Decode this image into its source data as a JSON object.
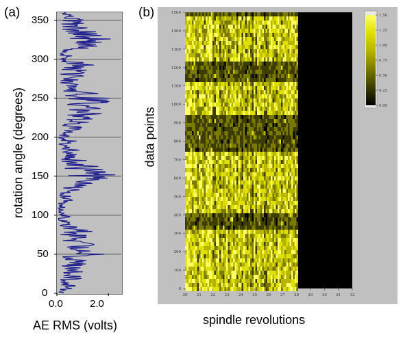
{
  "panel_a": {
    "label": "(a)"
  },
  "panel_b": {
    "label": "(b)"
  },
  "chart_data": [
    {
      "type": "line",
      "orientation": "horizontal-trace",
      "xlabel": "AE RMS (volts)",
      "ylabel": "rotation angle (degrees)",
      "xlim": [
        0,
        2.5
      ],
      "ylim": [
        0,
        360
      ],
      "xticks": [
        "0.0",
        "2.0"
      ],
      "yticks": [
        "0",
        "50",
        "100",
        "150",
        "200",
        "250",
        "300",
        "350"
      ],
      "grid": "horizontal",
      "background": "#c0c0c0",
      "series": [
        {
          "color": "#1f1f8f",
          "angle": [
            0,
            5,
            10,
            15,
            20,
            25,
            30,
            35,
            40,
            45,
            50,
            55,
            60,
            65,
            70,
            75,
            80,
            85,
            90,
            95,
            100,
            105,
            110,
            115,
            120,
            125,
            130,
            135,
            140,
            145,
            150,
            155,
            160,
            165,
            170,
            175,
            180,
            185,
            190,
            195,
            200,
            205,
            210,
            215,
            220,
            225,
            230,
            235,
            240,
            245,
            250,
            255,
            260,
            265,
            270,
            275,
            280,
            285,
            290,
            295,
            300,
            305,
            310,
            315,
            320,
            325,
            330,
            335,
            340,
            345,
            350,
            355,
            360
          ],
          "rms": [
            0.3,
            0.5,
            0.8,
            0.4,
            0.9,
            0.6,
            1.1,
            0.8,
            1.3,
            1.0,
            1.6,
            1.2,
            1.4,
            1.1,
            1.5,
            0.9,
            1.2,
            0.7,
            0.5,
            0.3,
            0.6,
            0.2,
            0.4,
            0.3,
            0.6,
            0.5,
            0.7,
            0.9,
            1.1,
            1.4,
            1.9,
            2.0,
            1.5,
            1.2,
            1.0,
            0.8,
            0.6,
            0.9,
            0.5,
            0.7,
            0.4,
            0.6,
            0.8,
            0.9,
            1.1,
            1.3,
            1.5,
            1.7,
            1.6,
            1.8,
            1.9,
            1.4,
            1.2,
            1.0,
            0.9,
            1.1,
            0.8,
            1.0,
            1.3,
            1.2,
            0.6,
            0.5,
            0.8,
            1.3,
            1.7,
            2.0,
            1.8,
            1.6,
            1.3,
            1.1,
            0.9,
            0.6,
            0.3
          ]
        }
      ]
    },
    {
      "type": "heatmap",
      "xlabel": "spindle revolutions",
      "ylabel": "data points",
      "ylim": [
        0,
        1500
      ],
      "yticks": [
        "0",
        "100",
        "200",
        "300",
        "400",
        "500",
        "600",
        "700",
        "800",
        "900",
        "1000",
        "1100",
        "1200",
        "1300",
        "1400",
        "1500"
      ],
      "xticks": [
        "20",
        "21",
        "22",
        "23",
        "24",
        "25",
        "26",
        "27",
        "28",
        "29",
        "30",
        "31",
        "32"
      ],
      "data_end_revolution": 28,
      "colormap": [
        "#000000",
        "#3d3d00",
        "#7a7a00",
        "#b5b500",
        "#e0e000",
        "#ffff66"
      ],
      "colorbar": {
        "ticks": [
          "0.00",
          "0.25",
          "0.50",
          "0.75",
          "1.00",
          "1.25",
          "1.50"
        ]
      },
      "bright_bands": [
        [
          0,
          330
        ],
        [
          420,
          760
        ],
        [
          960,
          1140
        ],
        [
          1250,
          1480
        ]
      ]
    }
  ]
}
